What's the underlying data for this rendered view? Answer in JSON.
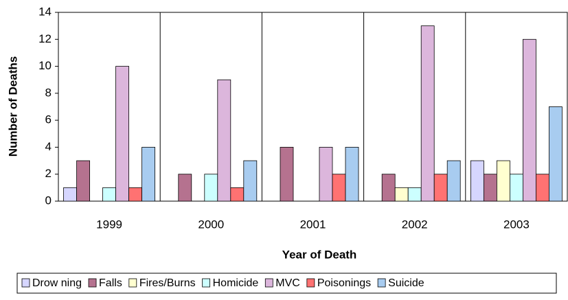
{
  "chart_data": {
    "type": "bar",
    "x_label": "Year of Death",
    "y_label": "Number of Deaths",
    "categories": [
      "1999",
      "2000",
      "2001",
      "2002",
      "2003"
    ],
    "series": [
      {
        "name": "Drow ning",
        "color": "#d6d6ff",
        "values": [
          1,
          0,
          0,
          0,
          3
        ]
      },
      {
        "name": "Falls",
        "color": "#b5728f",
        "values": [
          3,
          2,
          4,
          2,
          2
        ]
      },
      {
        "name": "Fires/Burns",
        "color": "#ffffd0",
        "values": [
          0,
          0,
          0,
          1,
          3
        ]
      },
      {
        "name": "Homicide",
        "color": "#ccffff",
        "values": [
          1,
          2,
          0,
          1,
          2
        ]
      },
      {
        "name": "MVC",
        "color": "#dcb6dc",
        "values": [
          10,
          9,
          4,
          13,
          12
        ]
      },
      {
        "name": "Poisonings",
        "color": "#ff7272",
        "values": [
          1,
          1,
          2,
          2,
          2
        ]
      },
      {
        "name": "Suicide",
        "color": "#a8ccf0",
        "values": [
          4,
          3,
          4,
          3,
          7
        ]
      }
    ],
    "ylim": [
      0,
      14
    ],
    "yticks": [
      0,
      2,
      4,
      6,
      8,
      10,
      12,
      14
    ]
  }
}
